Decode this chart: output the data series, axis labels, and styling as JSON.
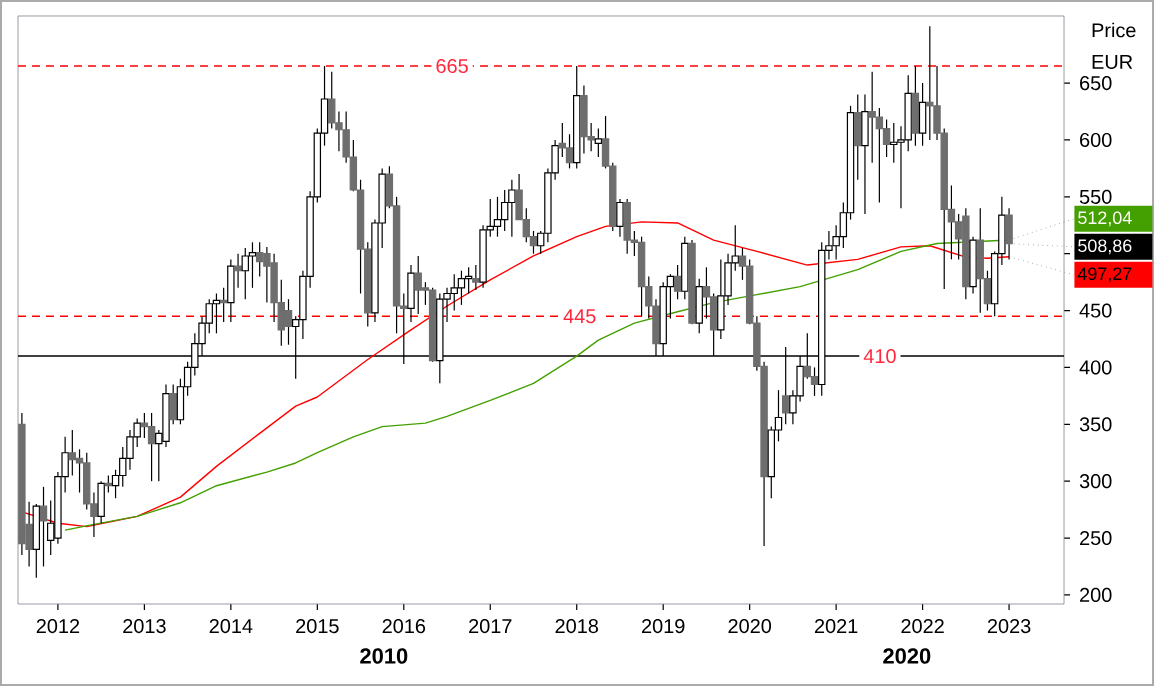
{
  "chart_data": {
    "type": "candlestick",
    "ylabel": "Price",
    "annotations": [
      "EUR",
      {
        "text": "508,86",
        "x": "2023-01",
        "y": 508.86
      },
      "2010",
      "2020"
    ],
    "xlim": [
      "2011-07-15",
      "2023-08-20"
    ],
    "xticks": [
      "2012",
      "2013",
      "2014",
      "2015",
      "2016",
      "2017",
      "2018",
      "2019",
      "2020",
      "2021",
      "2022",
      "2023"
    ],
    "ylim": [
      192,
      709
    ],
    "yticks": [
      200,
      250,
      300,
      350,
      400,
      450,
      {
        "value": 500,
        "label": null
      },
      550,
      600,
      650
    ],
    "ref_lines": [
      {
        "axis": "y",
        "value": 665,
        "label": "665",
        "color": "#ff0000",
        "line_style": "dashed"
      },
      {
        "axis": "y",
        "value": 445,
        "label": "445",
        "color": "#ff0000",
        "line_style": "dashed"
      },
      {
        "axis": "y",
        "value": 410,
        "label": "410",
        "color": "#000000",
        "line_style": "solid"
      }
    ],
    "series": [
      {
        "colors": [
          "#6e6e6e",
          "#6e6e6e",
          "#ffffff",
          "#6e6e6e",
          "#ffffff",
          "#ffffff",
          "#ffffff",
          "#6e6e6e",
          "#6e6e6e",
          "#6e6e6e",
          "#6e6e6e",
          "#ffffff",
          "#6e6e6e",
          "#ffffff",
          "#ffffff",
          "#ffffff",
          "#ffffff",
          "#6e6e6e",
          "#6e6e6e",
          "#ffffff",
          "#ffffff",
          "#6e6e6e",
          "#ffffff",
          "#ffffff",
          "#ffffff",
          "#ffffff",
          "#ffffff",
          "#ffffff",
          "#6e6e6e",
          "#ffffff",
          "#6e6e6e",
          "#ffffff",
          "#ffffff",
          "#6e6e6e",
          "#6e6e6e",
          "#6e6e6e",
          "#6e6e6e",
          "#6e6e6e",
          "#ffffff",
          "#ffffff",
          "#ffffff",
          "#ffffff",
          "#ffffff",
          "#6e6e6e",
          "#6e6e6e",
          "#6e6e6e",
          "#6e6e6e",
          "#6e6e6e",
          "#6e6e6e",
          "#ffffff",
          "#ffffff",
          "#6e6e6e",
          "#6e6e6e",
          "#6e6e6e",
          "#ffffff",
          "#6e6e6e",
          "#6e6e6e",
          "#6e6e6e",
          "#ffffff",
          "#ffffff",
          "#ffffff",
          "#ffffff",
          "#ffffff",
          "#6e6e6e",
          "#ffffff",
          "#ffffff",
          "#ffffff",
          "#ffffff",
          "#ffffff",
          "#6e6e6e",
          "#6e6e6e",
          "#6e6e6e",
          "#ffffff",
          "#ffffff",
          "#ffffff",
          "#6e6e6e",
          "#6e6e6e",
          "#ffffff",
          "#6e6e6e",
          "#6e6e6e",
          "#ffffff",
          "#6e6e6e",
          "#6e6e6e",
          "#ffffff",
          "#6e6e6e",
          "#6e6e6e",
          "#6e6e6e",
          "#6e6e6e",
          "#6e6e6e",
          "#ffffff",
          "#ffffff",
          "#6e6e6e",
          "#ffffff",
          "#6e6e6e",
          "#ffffff",
          "#6e6e6e",
          "#6e6e6e",
          "#ffffff",
          "#ffffff",
          "#ffffff",
          "#6e6e6e",
          "#6e6e6e",
          "#6e6e6e",
          "#6e6e6e",
          "#ffffff",
          "#ffffff",
          "#6e6e6e",
          "#ffffff",
          "#ffffff",
          "#6e6e6e",
          "#6e6e6e",
          "#ffffff",
          "#ffffff",
          "#ffffff",
          "#ffffff",
          "#ffffff",
          "#6e6e6e",
          "#ffffff",
          "#6e6e6e",
          "#6e6e6e",
          "#6e6e6e",
          "#ffffff",
          "#ffffff",
          "#ffffff",
          "#6e6e6e",
          "#ffffff",
          "#6e6e6e",
          "#6e6e6e",
          "#6e6e6e",
          "#6e6e6e",
          "#6e6e6e",
          "#6e6e6e",
          "#ffffff",
          "#6e6e6e",
          "#6e6e6e",
          "#ffffff",
          "#ffffff",
          "#6e6e6e"
        ],
        "x": [
          "2011-08",
          "2011-09",
          "2011-10",
          "2011-11",
          "2011-12",
          "2012-01",
          "2012-02",
          "2012-03",
          "2012-04",
          "2012-05",
          "2012-06",
          "2012-07",
          "2012-08",
          "2012-09",
          "2012-10",
          "2012-11",
          "2012-12",
          "2013-01",
          "2013-02",
          "2013-03",
          "2013-04",
          "2013-05",
          "2013-06",
          "2013-07",
          "2013-08",
          "2013-09",
          "2013-10",
          "2013-11",
          "2013-12",
          "2014-01",
          "2014-02",
          "2014-03",
          "2014-04",
          "2014-05",
          "2014-06",
          "2014-07",
          "2014-08",
          "2014-09",
          "2014-10",
          "2014-11",
          "2014-12",
          "2015-01",
          "2015-02",
          "2015-03",
          "2015-04",
          "2015-05",
          "2015-06",
          "2015-07",
          "2015-08",
          "2015-09",
          "2015-10",
          "2015-11",
          "2015-12",
          "2016-01",
          "2016-02",
          "2016-03",
          "2016-04",
          "2016-05",
          "2016-06",
          "2016-07",
          "2016-08",
          "2016-09",
          "2016-10",
          "2016-11",
          "2016-12",
          "2017-01",
          "2017-02",
          "2017-03",
          "2017-04",
          "2017-05",
          "2017-06",
          "2017-07",
          "2017-08",
          "2017-09",
          "2017-10",
          "2017-11",
          "2017-12",
          "2018-01",
          "2018-02",
          "2018-03",
          "2018-04",
          "2018-05",
          "2018-06",
          "2018-07",
          "2018-08",
          "2018-09",
          "2018-10",
          "2018-11",
          "2018-12",
          "2019-01",
          "2019-02",
          "2019-03",
          "2019-04",
          "2019-05",
          "2019-06",
          "2019-07",
          "2019-08",
          "2019-09",
          "2019-10",
          "2019-11",
          "2019-12",
          "2020-01",
          "2020-02",
          "2020-03",
          "2020-04",
          "2020-05",
          "2020-06",
          "2020-07",
          "2020-08",
          "2020-09",
          "2020-10",
          "2020-11",
          "2020-12",
          "2021-01",
          "2021-02",
          "2021-03",
          "2021-04",
          "2021-05",
          "2021-06",
          "2021-07",
          "2021-08",
          "2021-09",
          "2021-10",
          "2021-11",
          "2021-12",
          "2022-01",
          "2022-02",
          "2022-03",
          "2022-04",
          "2022-05",
          "2022-06",
          "2022-07",
          "2022-08",
          "2022-09",
          "2022-10",
          "2022-11",
          "2022-12",
          "2023-01"
        ],
        "ohlc": [
          [
            350,
            360,
            235,
            245
          ],
          [
            262,
            282,
            225,
            240
          ],
          [
            240,
            280,
            215,
            278
          ],
          [
            278,
            295,
            225,
            265
          ],
          [
            248,
            283,
            235,
            263
          ],
          [
            250,
            308,
            245,
            304
          ],
          [
            304,
            339,
            290,
            325
          ],
          [
            325,
            345,
            305,
            319
          ],
          [
            320,
            328,
            290,
            316
          ],
          [
            316,
            325,
            275,
            280
          ],
          [
            280,
            290,
            251,
            269
          ],
          [
            269,
            300,
            263,
            298
          ],
          [
            298,
            305,
            290,
            296
          ],
          [
            296,
            310,
            285,
            305
          ],
          [
            305,
            330,
            295,
            320
          ],
          [
            320,
            345,
            310,
            339
          ],
          [
            339,
            355,
            330,
            351
          ],
          [
            351,
            360,
            338,
            348
          ],
          [
            348,
            360,
            300,
            333
          ],
          [
            333,
            345,
            300,
            342
          ],
          [
            335,
            385,
            330,
            377
          ],
          [
            377,
            385,
            350,
            354
          ],
          [
            354,
            390,
            350,
            383
          ],
          [
            383,
            405,
            375,
            400
          ],
          [
            400,
            430,
            393,
            421
          ],
          [
            421,
            445,
            410,
            439
          ],
          [
            439,
            460,
            430,
            456
          ],
          [
            456,
            465,
            430,
            459
          ],
          [
            459,
            470,
            440,
            457
          ],
          [
            457,
            495,
            440,
            489
          ],
          [
            489,
            500,
            470,
            485
          ],
          [
            485,
            505,
            460,
            498
          ],
          [
            498,
            510,
            470,
            501
          ],
          [
            501,
            510,
            480,
            493
          ],
          [
            500,
            506,
            457,
            489
          ],
          [
            492,
            500,
            440,
            457
          ],
          [
            457,
            477,
            419,
            433
          ],
          [
            450,
            460,
            420,
            436
          ],
          [
            436,
            445,
            390,
            442
          ],
          [
            442,
            485,
            425,
            480
          ],
          [
            480,
            555,
            470,
            550
          ],
          [
            550,
            610,
            545,
            606
          ],
          [
            606,
            665,
            595,
            636
          ],
          [
            636,
            660,
            610,
            615
          ],
          [
            615,
            625,
            590,
            609
          ],
          [
            609,
            625,
            580,
            585
          ],
          [
            585,
            600,
            555,
            556
          ],
          [
            556,
            565,
            465,
            504
          ],
          [
            504,
            510,
            436,
            448
          ],
          [
            448,
            530,
            440,
            527
          ],
          [
            527,
            575,
            505,
            570
          ],
          [
            570,
            577,
            540,
            542
          ],
          [
            542,
            550,
            430,
            454
          ],
          [
            454,
            465,
            403,
            452
          ],
          [
            452,
            490,
            440,
            483
          ],
          [
            483,
            498,
            447,
            468
          ],
          [
            470,
            475,
            455,
            468
          ],
          [
            468,
            470,
            405,
            406
          ],
          [
            406,
            465,
            386,
            460
          ],
          [
            460,
            470,
            440,
            465
          ],
          [
            465,
            482,
            450,
            470
          ],
          [
            470,
            485,
            455,
            478
          ],
          [
            478,
            488,
            465,
            480
          ],
          [
            478,
            490,
            468,
            475
          ],
          [
            475,
            525,
            470,
            521
          ],
          [
            521,
            548,
            515,
            524
          ],
          [
            524,
            550,
            515,
            530
          ],
          [
            530,
            556,
            520,
            545
          ],
          [
            545,
            565,
            515,
            556
          ],
          [
            556,
            570,
            530,
            530
          ],
          [
            530,
            540,
            510,
            515
          ],
          [
            515,
            520,
            500,
            507
          ],
          [
            507,
            520,
            500,
            518
          ],
          [
            518,
            575,
            510,
            571
          ],
          [
            571,
            600,
            565,
            595
          ],
          [
            597,
            615,
            585,
            593
          ],
          [
            593,
            605,
            575,
            580
          ],
          [
            580,
            665,
            575,
            639
          ],
          [
            639,
            648,
            588,
            603
          ],
          [
            603,
            615,
            590,
            600
          ],
          [
            597,
            610,
            585,
            601
          ],
          [
            601,
            621,
            575,
            577
          ],
          [
            577,
            580,
            520,
            524
          ],
          [
            524,
            548,
            515,
            545
          ],
          [
            545,
            548,
            500,
            512
          ],
          [
            512,
            520,
            498,
            510
          ],
          [
            510,
            515,
            445,
            471
          ],
          [
            471,
            480,
            443,
            454
          ],
          [
            454,
            460,
            410,
            421
          ],
          [
            421,
            475,
            410,
            471
          ],
          [
            471,
            482,
            443,
            480
          ],
          [
            480,
            490,
            460,
            467
          ],
          [
            467,
            515,
            460,
            509
          ],
          [
            509,
            512,
            438,
            439
          ],
          [
            439,
            478,
            430,
            471
          ],
          [
            471,
            488,
            443,
            462
          ],
          [
            462,
            465,
            410,
            433
          ],
          [
            433,
            495,
            425,
            463
          ],
          [
            463,
            500,
            455,
            492
          ],
          [
            492,
            525,
            485,
            498
          ],
          [
            498,
            505,
            477,
            489
          ],
          [
            489,
            495,
            438,
            439
          ],
          [
            439,
            445,
            397,
            401
          ],
          [
            401,
            405,
            243,
            304
          ],
          [
            304,
            348,
            285,
            345
          ],
          [
            345,
            380,
            335,
            356
          ],
          [
            375,
            418,
            350,
            360
          ],
          [
            360,
            380,
            350,
            375
          ],
          [
            375,
            410,
            370,
            401
          ],
          [
            401,
            430,
            390,
            392
          ],
          [
            392,
            400,
            375,
            385
          ],
          [
            385,
            510,
            375,
            503
          ],
          [
            503,
            520,
            495,
            507
          ],
          [
            507,
            525,
            495,
            515
          ],
          [
            515,
            545,
            505,
            536
          ],
          [
            536,
            630,
            530,
            624
          ],
          [
            624,
            640,
            565,
            595
          ],
          [
            595,
            640,
            535,
            625
          ],
          [
            625,
            660,
            580,
            620
          ],
          [
            620,
            628,
            545,
            610
          ],
          [
            610,
            618,
            585,
            596
          ],
          [
            596,
            615,
            580,
            598
          ],
          [
            598,
            612,
            540,
            600
          ],
          [
            600,
            657,
            590,
            641
          ],
          [
            641,
            665,
            595,
            606
          ],
          [
            606,
            650,
            595,
            633
          ],
          [
            633,
            700,
            600,
            630
          ],
          [
            630,
            665,
            600,
            606
          ],
          [
            606,
            610,
            469,
            539
          ],
          [
            539,
            560,
            495,
            528
          ],
          [
            528,
            535,
            495,
            513
          ],
          [
            533,
            540,
            460,
            471
          ],
          [
            471,
            515,
            465,
            512
          ],
          [
            512,
            540,
            448,
            478
          ],
          [
            478,
            485,
            450,
            456
          ],
          [
            456,
            502,
            445,
            500
          ],
          [
            500,
            550,
            490,
            534
          ],
          [
            534,
            540,
            495,
            508.86
          ]
        ]
      },
      {
        "type": "line",
        "color": "#ff0000",
        "x": [
          "2011-08",
          "2012-01",
          "2012-05",
          "2012-12",
          "2013-06",
          "2013-11",
          "2014-05",
          "2014-10",
          "2015-01",
          "2015-08",
          "2016-02",
          "2016-07",
          "2017-01",
          "2017-07",
          "2018-01",
          "2018-05",
          "2018-10",
          "2019-03",
          "2019-08",
          "2020-02",
          "2020-09",
          "2021-04",
          "2021-10",
          "2022-02",
          "2022-07",
          "2022-10",
          "2023-01"
        ],
        "values": [
          273,
          263,
          260,
          269,
          286,
          313,
          342,
          366,
          374,
          407,
          433,
          454,
          477,
          498,
          515,
          524,
          528,
          527,
          512,
          502,
          490,
          495,
          506,
          507,
          497,
          496,
          497.27
        ],
        "value_labels": [
          null,
          null,
          null,
          null,
          null,
          null,
          null,
          null,
          null,
          null,
          null,
          null,
          null,
          null,
          null,
          null,
          null,
          null,
          null,
          null,
          null,
          null,
          null,
          null,
          null,
          null,
          "497,27"
        ]
      },
      {
        "type": "line",
        "color": "#44a000",
        "x": [
          "2012-02",
          "2012-06",
          "2012-12",
          "2013-06",
          "2013-11",
          "2014-06",
          "2014-10",
          "2015-01",
          "2015-06",
          "2015-10",
          "2016-04",
          "2016-07",
          "2017-01",
          "2017-07",
          "2018-01",
          "2018-04",
          "2018-09",
          "2019-03",
          "2019-08",
          "2020-02",
          "2020-08",
          "2021-04",
          "2021-10",
          "2022-03",
          "2022-08",
          "2023-01"
        ],
        "values": [
          257,
          262,
          269,
          281,
          296,
          308,
          316,
          325,
          339,
          348,
          351,
          357,
          371,
          386,
          410,
          424,
          439,
          449,
          457,
          464,
          471,
          486,
          502,
          509,
          null,
          512.04
        ],
        "value_labels": [
          null,
          null,
          null,
          null,
          null,
          null,
          null,
          null,
          null,
          null,
          null,
          null,
          null,
          null,
          null,
          null,
          null,
          null,
          null,
          null,
          null,
          null,
          null,
          null,
          null,
          "512,04"
        ]
      }
    ]
  }
}
